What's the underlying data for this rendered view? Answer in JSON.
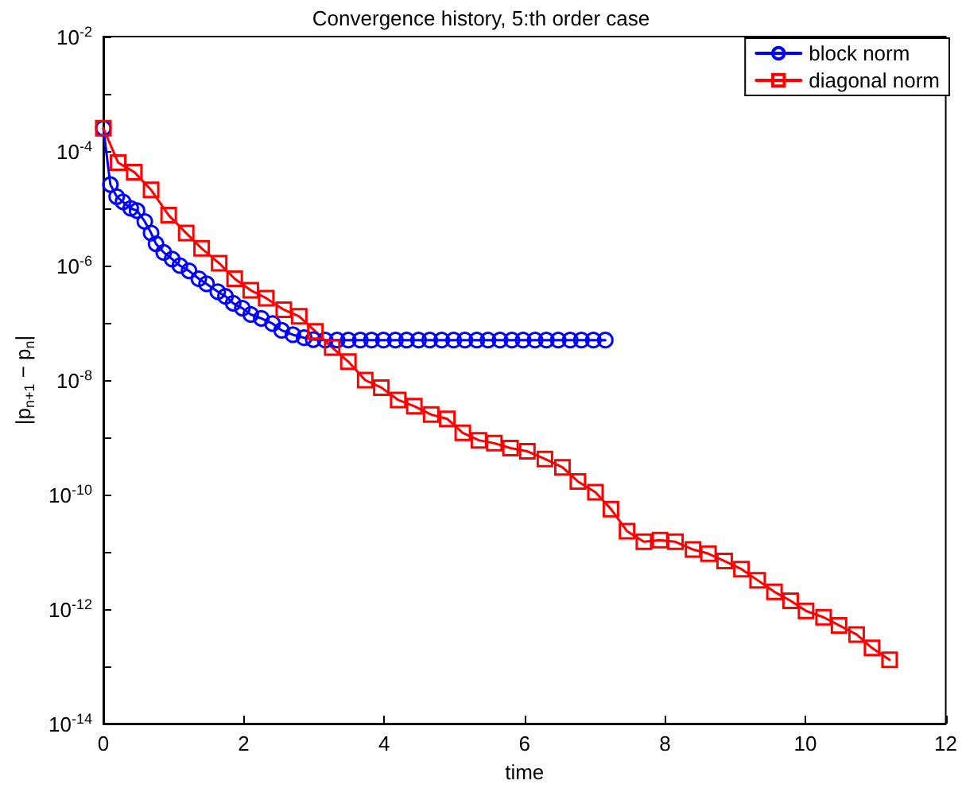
{
  "chart_data": {
    "type": "line",
    "title": "Convergence history, 5:th order case",
    "xlabel": "time",
    "ylabel": "|p$_{n+1}$ − p$_{n}$|",
    "log": "y",
    "grid": false,
    "legend": "top right",
    "line_style": "solid",
    "xlim": [
      0,
      12
    ],
    "xticks": [
      0,
      2,
      4,
      6,
      8,
      10,
      12
    ],
    "ylim": [
      1e-14,
      0.01
    ],
    "yticks": [
      {
        "value": 1e-14,
        "label": "10$^{-14}$"
      },
      {
        "value": 1e-13,
        "label": null
      },
      {
        "value": 1e-12,
        "label": "10$^{-12}$"
      },
      {
        "value": 1e-11,
        "label": null
      },
      {
        "value": 1e-10,
        "label": "10$^{-10}$"
      },
      {
        "value": 1e-09,
        "label": null
      },
      {
        "value": 1e-08,
        "label": "10$^{-8}$"
      },
      {
        "value": 1e-07,
        "label": null
      },
      {
        "value": 1e-06,
        "label": "10$^{-6}$"
      },
      {
        "value": 1e-05,
        "label": null
      },
      {
        "value": 0.0001,
        "label": "10$^{-4}$"
      },
      {
        "value": 0.001,
        "label": null
      },
      {
        "value": 0.01,
        "label": "10$^{-2}$"
      }
    ],
    "series": [
      {
        "name": "block norm",
        "color": "#0000ff",
        "marker": "circle",
        "x": [
          0,
          0.1,
          0.19,
          0.28,
          0.39,
          0.48,
          0.59,
          0.68,
          0.75,
          0.86,
          0.98,
          1.09,
          1.22,
          1.36,
          1.47,
          1.63,
          1.74,
          1.85,
          1.98,
          2.1,
          2.25,
          2.41,
          2.54,
          2.7,
          2.86,
          2.99,
          3.16,
          3.33,
          3.49,
          3.66,
          3.82,
          3.99,
          4.16,
          4.32,
          4.49,
          4.65,
          4.82,
          4.99,
          5.15,
          5.32,
          5.48,
          5.65,
          5.82,
          5.98,
          6.15,
          6.31,
          6.48,
          6.65,
          6.81,
          6.98,
          7.15
        ],
        "values": [
          0.00025,
          2.6e-05,
          1.6e-05,
          1.3e-05,
          1e-05,
          9.1e-06,
          5.9e-06,
          3.7e-06,
          2.4e-06,
          1.7e-06,
          1.3e-06,
          1e-06,
          8.1e-07,
          5.9e-07,
          4.8e-07,
          3.5e-07,
          2.9e-07,
          2.2e-07,
          1.8e-07,
          1.4e-07,
          1.2e-07,
          9.7e-08,
          7.4e-08,
          6.2e-08,
          5.5e-08,
          5.1e-08,
          5e-08,
          5e-08,
          5e-08,
          5e-08,
          5e-08,
          5e-08,
          5e-08,
          5e-08,
          5e-08,
          5e-08,
          5e-08,
          5e-08,
          5e-08,
          5e-08,
          5e-08,
          5e-08,
          5e-08,
          5e-08,
          5e-08,
          5e-08,
          5e-08,
          5e-08,
          5e-08,
          5e-08,
          5e-08
        ]
      },
      {
        "name": "diagonal norm",
        "color": "#ff0000",
        "marker": "square",
        "x": [
          0,
          0.21,
          0.44,
          0.68,
          0.93,
          1.18,
          1.4,
          1.65,
          1.87,
          2.1,
          2.32,
          2.57,
          2.79,
          3.02,
          3.26,
          3.49,
          3.73,
          3.96,
          4.2,
          4.43,
          4.67,
          4.9,
          5.12,
          5.35,
          5.57,
          5.8,
          6.04,
          6.29,
          6.54,
          6.76,
          7.01,
          7.23,
          7.46,
          7.7,
          7.93,
          8.15,
          8.4,
          8.62,
          8.85,
          9.09,
          9.32,
          9.56,
          9.79,
          10.01,
          10.26,
          10.48,
          10.73,
          10.95,
          11.2
        ],
        "values": [
          0.00025,
          6.3e-05,
          4.3e-05,
          2.1e-05,
          7.6e-06,
          3.7e-06,
          2e-06,
          1.1e-06,
          5.9e-07,
          3.7e-07,
          2.7e-07,
          1.7e-07,
          1.3e-07,
          7.1e-08,
          3.7e-08,
          2.1e-08,
          1e-08,
          7.4e-09,
          4.5e-09,
          3.5e-09,
          2.5e-09,
          2.1e-09,
          1.2e-09,
          8.9e-10,
          7.9e-10,
          6.5e-10,
          5.7e-10,
          4.2e-10,
          3e-10,
          1.7e-10,
          1.1e-10,
          5.6e-11,
          2.3e-11,
          1.5e-11,
          1.6e-11,
          1.5e-11,
          1.1e-11,
          9.3e-12,
          6.9e-12,
          5e-12,
          3.2e-12,
          2e-12,
          1.4e-12,
          9.3e-13,
          7.2e-13,
          5.2e-13,
          3.6e-13,
          2.1e-13,
          1.3e-13
        ]
      }
    ]
  }
}
